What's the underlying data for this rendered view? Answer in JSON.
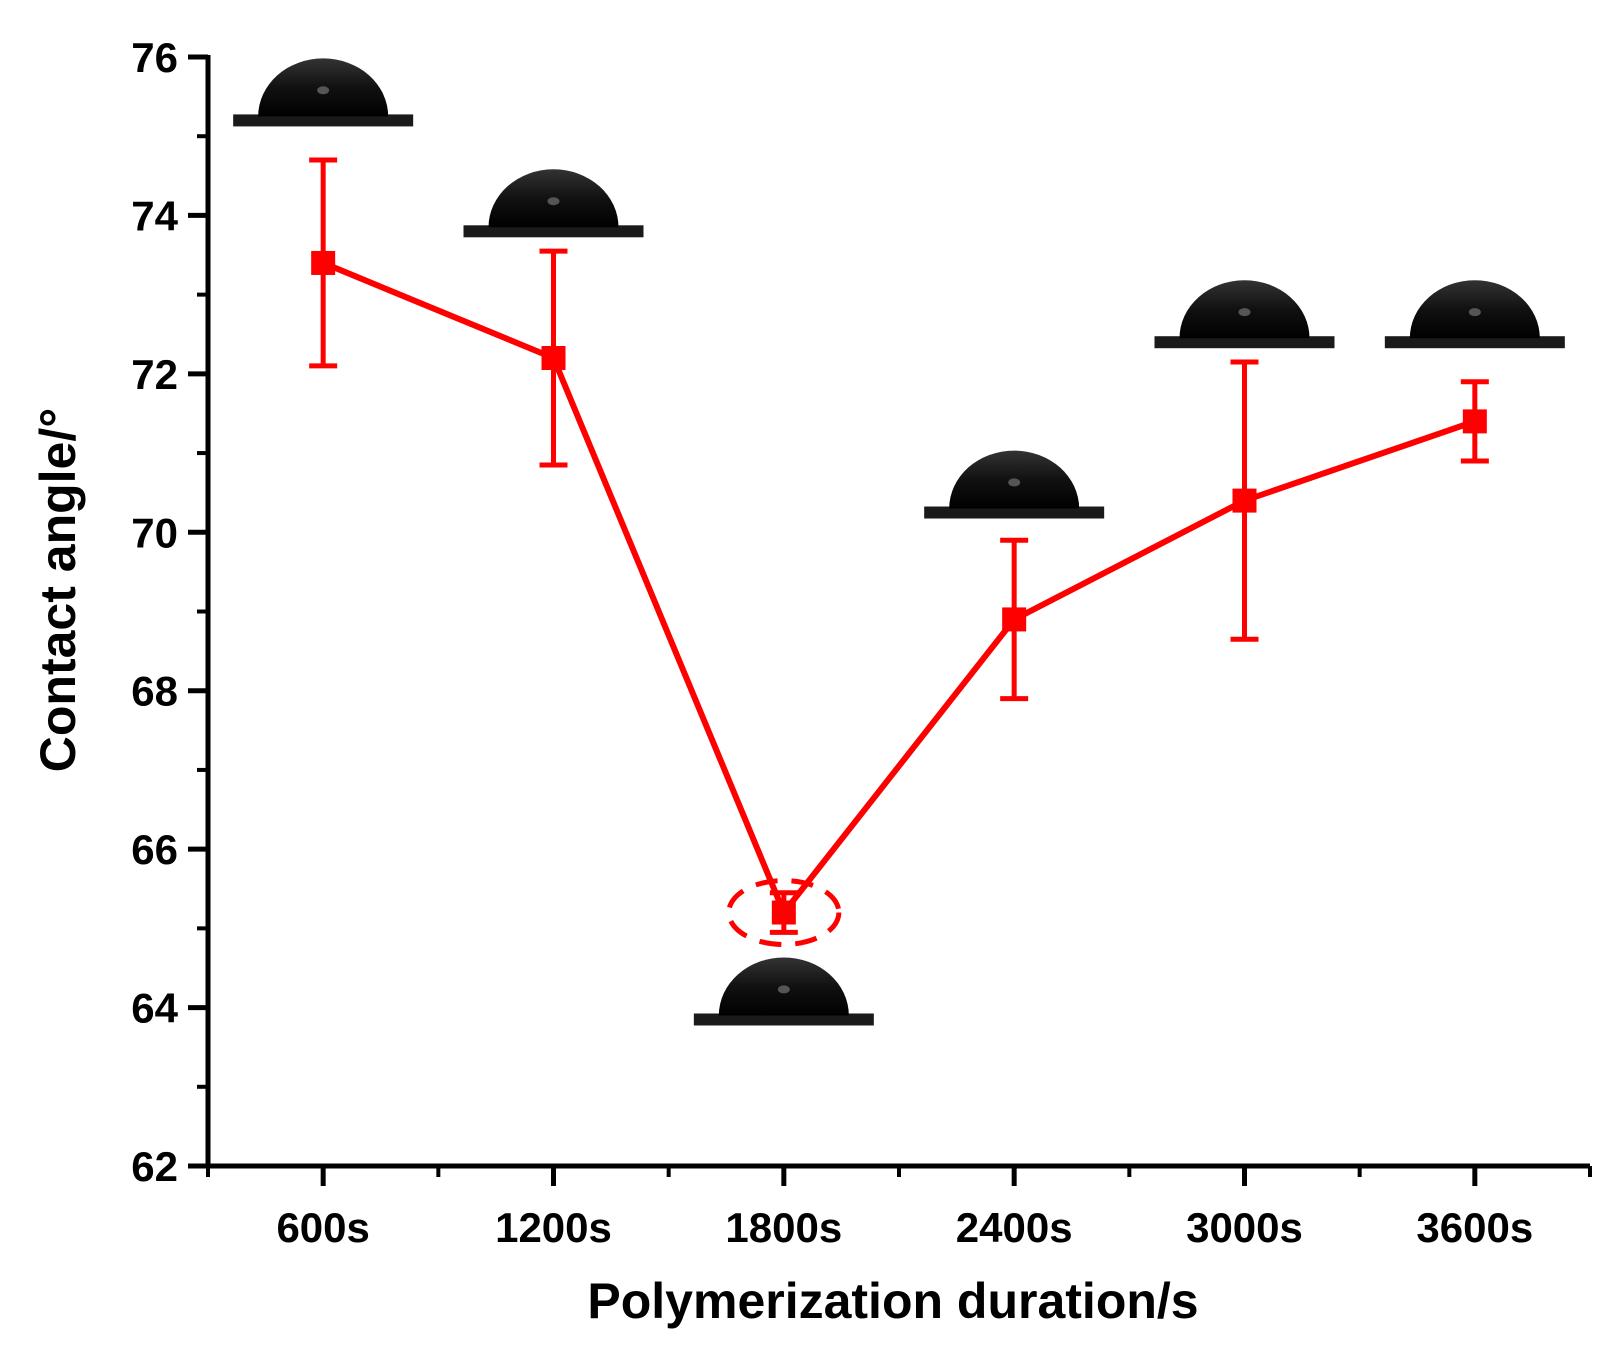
{
  "chart_data": {
    "type": "line",
    "title": "",
    "xlabel": "Polymerization duration/s",
    "ylabel": "Contact angle/°",
    "categories": [
      "600s",
      "1200s",
      "1800s",
      "2400s",
      "3000s",
      "3600s"
    ],
    "ylim": [
      62,
      76
    ],
    "yticks": [
      62,
      64,
      66,
      68,
      70,
      72,
      74,
      76
    ],
    "ytick_labels": [
      "62",
      "64",
      "66",
      "68",
      "70",
      "72",
      "74",
      "76"
    ],
    "series": [
      {
        "name": "Contact angle",
        "color": "#ff0000",
        "values": [
          73.4,
          72.2,
          65.2,
          68.9,
          70.4,
          71.4
        ],
        "error": [
          1.3,
          1.35,
          0.25,
          1.0,
          1.75,
          0.5
        ]
      }
    ],
    "annotations": [
      {
        "type": "dashed-ellipse",
        "category": "1800s",
        "value": 65.2,
        "color": "#ff0000"
      },
      {
        "type": "droplet-image",
        "category": "600s",
        "value": 75.25
      },
      {
        "type": "droplet-image",
        "category": "1200s",
        "value": 73.85
      },
      {
        "type": "droplet-image",
        "category": "1800s",
        "value": 63.9
      },
      {
        "type": "droplet-image",
        "category": "2400s",
        "value": 70.3
      },
      {
        "type": "droplet-image",
        "category": "3000s",
        "value": 72.45
      },
      {
        "type": "droplet-image",
        "category": "3600s",
        "value": 72.45
      }
    ],
    "grid": false,
    "legend": "none"
  }
}
